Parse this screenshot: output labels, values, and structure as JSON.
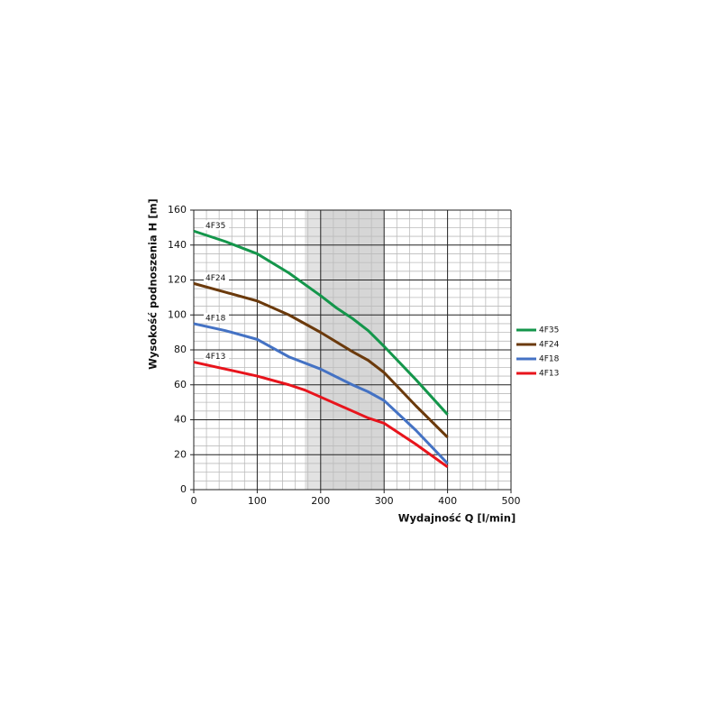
{
  "chart_data": {
    "type": "line",
    "xlabel": "Wydajność Q [l/min]",
    "ylabel": "Wysokość podnoszenia H [m]",
    "xlim": [
      0,
      500
    ],
    "ylim": [
      0,
      160
    ],
    "xticks": [
      0,
      100,
      200,
      300,
      400,
      500
    ],
    "yticks": [
      0,
      20,
      40,
      60,
      80,
      100,
      120,
      140,
      160
    ],
    "minor_xticks": [
      20,
      40,
      60,
      80,
      120,
      140,
      160,
      180,
      220,
      240,
      260,
      280,
      320,
      340,
      360,
      380,
      420,
      440,
      460,
      480
    ],
    "minor_yticks": [
      5,
      10,
      15,
      25,
      30,
      35,
      45,
      50,
      55,
      65,
      70,
      75,
      85,
      90,
      95,
      105,
      110,
      115,
      125,
      130,
      135,
      145,
      150,
      155
    ],
    "grid": true,
    "bands": [
      {
        "range": [
          175,
          200
        ],
        "color": "#e2e2e2"
      },
      {
        "range": [
          200,
          300
        ],
        "color": "#d6d6d6"
      }
    ],
    "legend": "right",
    "series": [
      {
        "name": "4F35",
        "color": "#14964b",
        "x": [
          0,
          50,
          100,
          150,
          200,
          225,
          250,
          275,
          300,
          350,
          400
        ],
        "values": [
          148,
          142,
          135,
          124,
          111,
          104,
          98,
          91,
          82,
          63,
          43
        ]
      },
      {
        "name": "4F24",
        "color": "#6b3a0c",
        "x": [
          0,
          50,
          100,
          150,
          200,
          250,
          275,
          300,
          350,
          400
        ],
        "values": [
          118,
          113,
          108,
          100,
          90,
          79,
          74,
          67,
          48,
          30
        ]
      },
      {
        "name": "4F18",
        "color": "#4472c4",
        "x": [
          0,
          50,
          100,
          150,
          200,
          250,
          275,
          300,
          350,
          400
        ],
        "values": [
          95,
          91,
          86,
          76,
          69,
          60,
          56,
          51,
          34,
          15
        ]
      },
      {
        "name": "4F13",
        "color": "#e8141c",
        "x": [
          0,
          50,
          100,
          150,
          175,
          200,
          250,
          275,
          300,
          350,
          400
        ],
        "values": [
          73,
          69,
          65,
          60,
          57,
          53,
          45,
          41,
          38,
          26,
          13
        ]
      }
    ]
  }
}
